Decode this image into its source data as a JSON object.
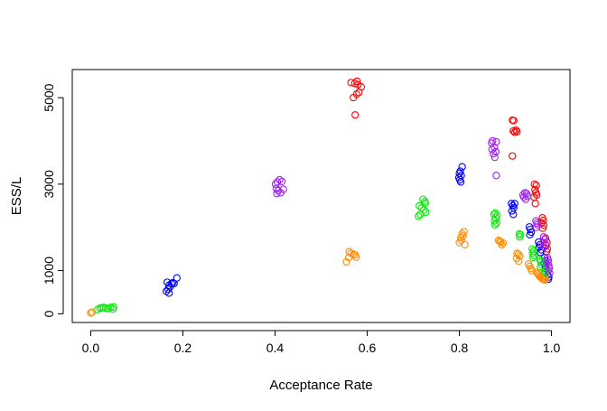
{
  "chart_data": {
    "type": "scatter",
    "title": "",
    "xlabel": "Acceptance Rate",
    "ylabel": "ESS/L",
    "xlim": [
      -0.04,
      1.04
    ],
    "ylim": [
      -200,
      5650
    ],
    "xticks": [
      0.0,
      0.2,
      0.4,
      0.6,
      0.8,
      1.0
    ],
    "xtick_labels": [
      "0.0",
      "0.2",
      "0.4",
      "0.6",
      "0.8",
      "1.0"
    ],
    "yticks": [
      0,
      1000,
      3000,
      5000
    ],
    "ytick_labels": [
      "0",
      "1000",
      "3000",
      "5000"
    ],
    "marker": "open-circle",
    "grid": false,
    "legend": "none",
    "series": [
      {
        "color": "#FF0000",
        "points": [
          [
            0.565,
            5350
          ],
          [
            0.573,
            5330
          ],
          [
            0.578,
            5380
          ],
          [
            0.58,
            5300
          ],
          [
            0.587,
            5250
          ],
          [
            0.57,
            5000
          ],
          [
            0.577,
            5080
          ],
          [
            0.582,
            5120
          ],
          [
            0.574,
            4600
          ],
          [
            0.915,
            4480
          ],
          [
            0.918,
            4470
          ],
          [
            0.917,
            4230
          ],
          [
            0.92,
            4200
          ],
          [
            0.923,
            4250
          ],
          [
            0.925,
            4210
          ],
          [
            0.915,
            3650
          ],
          [
            0.963,
            3000
          ],
          [
            0.967,
            2970
          ],
          [
            0.964,
            2870
          ],
          [
            0.966,
            2800
          ],
          [
            0.968,
            2750
          ],
          [
            0.962,
            2700
          ],
          [
            0.965,
            2550
          ],
          [
            0.98,
            2220
          ],
          [
            0.982,
            2160
          ],
          [
            0.979,
            2100
          ],
          [
            0.983,
            2050
          ],
          [
            0.981,
            1980
          ],
          [
            0.987,
            1750
          ],
          [
            0.99,
            1650
          ],
          [
            0.988,
            1580
          ],
          [
            0.991,
            1500
          ],
          [
            0.989,
            1440
          ]
        ]
      },
      {
        "color": "#0000FF",
        "points": [
          [
            0.166,
            730
          ],
          [
            0.17,
            660
          ],
          [
            0.175,
            700
          ],
          [
            0.178,
            720
          ],
          [
            0.181,
            700
          ],
          [
            0.187,
            830
          ],
          [
            0.172,
            620
          ],
          [
            0.168,
            570
          ],
          [
            0.164,
            520
          ],
          [
            0.17,
            480
          ],
          [
            0.8,
            3250
          ],
          [
            0.802,
            3300
          ],
          [
            0.806,
            3400
          ],
          [
            0.799,
            3150
          ],
          [
            0.804,
            3200
          ],
          [
            0.801,
            3100
          ],
          [
            0.803,
            3050
          ],
          [
            0.913,
            2550
          ],
          [
            0.916,
            2500
          ],
          [
            0.92,
            2550
          ],
          [
            0.918,
            2450
          ],
          [
            0.914,
            2380
          ],
          [
            0.917,
            2300
          ],
          [
            0.952,
            2010
          ],
          [
            0.954,
            1950
          ],
          [
            0.956,
            1890
          ],
          [
            0.953,
            1830
          ],
          [
            0.972,
            1660
          ],
          [
            0.975,
            1600
          ],
          [
            0.973,
            1540
          ],
          [
            0.978,
            1480
          ],
          [
            0.976,
            1420
          ],
          [
            0.985,
            1300
          ],
          [
            0.987,
            1230
          ],
          [
            0.984,
            1170
          ],
          [
            0.988,
            1110
          ],
          [
            0.986,
            1050
          ],
          [
            0.992,
            900
          ],
          [
            0.994,
            850
          ],
          [
            0.993,
            800
          ]
        ]
      },
      {
        "color": "#00EE00",
        "points": [
          [
            0.015,
            100
          ],
          [
            0.02,
            130
          ],
          [
            0.024,
            140
          ],
          [
            0.028,
            150
          ],
          [
            0.033,
            130
          ],
          [
            0.038,
            120
          ],
          [
            0.043,
            150
          ],
          [
            0.048,
            110
          ],
          [
            0.05,
            160
          ],
          [
            0.713,
            2500
          ],
          [
            0.718,
            2450
          ],
          [
            0.723,
            2400
          ],
          [
            0.725,
            2600
          ],
          [
            0.721,
            2650
          ],
          [
            0.726,
            2560
          ],
          [
            0.715,
            2300
          ],
          [
            0.711,
            2260
          ],
          [
            0.727,
            2350
          ],
          [
            0.875,
            2300
          ],
          [
            0.878,
            2330
          ],
          [
            0.882,
            2280
          ],
          [
            0.879,
            2220
          ],
          [
            0.876,
            2150
          ],
          [
            0.881,
            2100
          ],
          [
            0.877,
            2060
          ],
          [
            0.93,
            1850
          ],
          [
            0.933,
            1830
          ],
          [
            0.931,
            1780
          ],
          [
            0.958,
            1500
          ],
          [
            0.961,
            1450
          ],
          [
            0.959,
            1400
          ],
          [
            0.962,
            1350
          ],
          [
            0.96,
            1300
          ],
          [
            0.975,
            1250
          ],
          [
            0.977,
            1200
          ],
          [
            0.979,
            1140
          ],
          [
            0.976,
            1090
          ],
          [
            0.985,
            1000
          ],
          [
            0.987,
            960
          ],
          [
            0.986,
            920
          ]
        ]
      },
      {
        "color": "#A020F0",
        "points": [
          [
            0.401,
            3000
          ],
          [
            0.405,
            3050
          ],
          [
            0.41,
            3100
          ],
          [
            0.415,
            3060
          ],
          [
            0.403,
            2900
          ],
          [
            0.407,
            2850
          ],
          [
            0.412,
            2800
          ],
          [
            0.418,
            2880
          ],
          [
            0.404,
            2780
          ],
          [
            0.87,
            3950
          ],
          [
            0.872,
            4000
          ],
          [
            0.88,
            3980
          ],
          [
            0.876,
            3850
          ],
          [
            0.871,
            3800
          ],
          [
            0.879,
            3750
          ],
          [
            0.874,
            3700
          ],
          [
            0.877,
            3620
          ],
          [
            0.88,
            3200
          ],
          [
            0.938,
            2750
          ],
          [
            0.942,
            2800
          ],
          [
            0.946,
            2780
          ],
          [
            0.94,
            2700
          ],
          [
            0.944,
            2650
          ],
          [
            0.948,
            2720
          ],
          [
            0.966,
            2150
          ],
          [
            0.968,
            2100
          ],
          [
            0.97,
            2060
          ],
          [
            0.967,
            2000
          ],
          [
            0.983,
            1780
          ],
          [
            0.985,
            1720
          ],
          [
            0.982,
            1650
          ],
          [
            0.987,
            1600
          ],
          [
            0.984,
            1540
          ],
          [
            0.991,
            1300
          ],
          [
            0.993,
            1240
          ],
          [
            0.992,
            1180
          ],
          [
            0.994,
            1120
          ],
          [
            0.995,
            1060
          ],
          [
            0.993,
            1000
          ],
          [
            0.996,
            940
          ]
        ]
      },
      {
        "color": "#FF8C00",
        "points": [
          [
            0.0,
            20
          ],
          [
            0.003,
            40
          ],
          [
            0.555,
            1200
          ],
          [
            0.56,
            1300
          ],
          [
            0.565,
            1400
          ],
          [
            0.57,
            1380
          ],
          [
            0.574,
            1360
          ],
          [
            0.576,
            1310
          ],
          [
            0.561,
            1440
          ],
          [
            0.8,
            1650
          ],
          [
            0.804,
            1700
          ],
          [
            0.808,
            1800
          ],
          [
            0.81,
            1900
          ],
          [
            0.806,
            1850
          ],
          [
            0.812,
            1600
          ],
          [
            0.803,
            1760
          ],
          [
            0.885,
            1700
          ],
          [
            0.89,
            1660
          ],
          [
            0.895,
            1640
          ],
          [
            0.892,
            1600
          ],
          [
            0.888,
            1680
          ],
          [
            0.925,
            1400
          ],
          [
            0.928,
            1380
          ],
          [
            0.931,
            1340
          ],
          [
            0.924,
            1280
          ],
          [
            0.929,
            1220
          ],
          [
            0.95,
            1150
          ],
          [
            0.953,
            1100
          ],
          [
            0.955,
            1050
          ],
          [
            0.957,
            1000
          ],
          [
            0.968,
            960
          ],
          [
            0.97,
            930
          ],
          [
            0.972,
            900
          ],
          [
            0.974,
            870
          ],
          [
            0.976,
            850
          ],
          [
            0.978,
            830
          ],
          [
            0.98,
            810
          ],
          [
            0.982,
            800
          ],
          [
            0.984,
            790
          ],
          [
            0.986,
            780
          ]
        ]
      }
    ]
  }
}
